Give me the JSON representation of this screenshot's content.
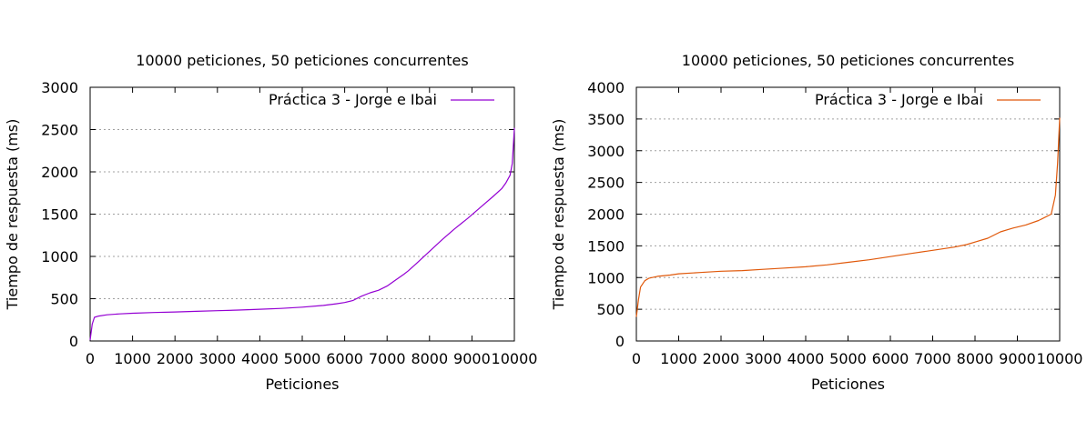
{
  "chart_data": [
    {
      "type": "line",
      "title": "10000 peticiones, 50 peticiones concurrentes",
      "xlabel": "Peticiones",
      "ylabel": "Tiempo de respuesta (ms)",
      "xlim": [
        0,
        10000
      ],
      "ylim": [
        0,
        3000
      ],
      "xticks": [
        0,
        1000,
        2000,
        3000,
        4000,
        5000,
        6000,
        7000,
        8000,
        9000,
        10000
      ],
      "yticks": [
        0,
        500,
        1000,
        1500,
        2000,
        2500,
        3000
      ],
      "grid": "horizontal dotted",
      "legend": "top-right",
      "series": [
        {
          "name": "Práctica 3 - Jorge e Ibai",
          "color": "#9400d3",
          "points": [
            [
              0,
              10
            ],
            [
              50,
              200
            ],
            [
              100,
              280
            ],
            [
              200,
              295
            ],
            [
              400,
              310
            ],
            [
              700,
              320
            ],
            [
              1000,
              328
            ],
            [
              1500,
              337
            ],
            [
              2000,
              343
            ],
            [
              2500,
              350
            ],
            [
              3000,
              358
            ],
            [
              3500,
              366
            ],
            [
              4000,
              375
            ],
            [
              4500,
              385
            ],
            [
              5000,
              400
            ],
            [
              5500,
              420
            ],
            [
              5800,
              440
            ],
            [
              6000,
              455
            ],
            [
              6200,
              480
            ],
            [
              6400,
              530
            ],
            [
              6600,
              570
            ],
            [
              6800,
              600
            ],
            [
              7000,
              650
            ],
            [
              7200,
              720
            ],
            [
              7400,
              790
            ],
            [
              7500,
              830
            ],
            [
              7700,
              920
            ],
            [
              8000,
              1060
            ],
            [
              8300,
              1200
            ],
            [
              8600,
              1330
            ],
            [
              8900,
              1450
            ],
            [
              9200,
              1580
            ],
            [
              9500,
              1710
            ],
            [
              9700,
              1800
            ],
            [
              9800,
              1870
            ],
            [
              9900,
              1960
            ],
            [
              9950,
              2100
            ],
            [
              9980,
              2350
            ],
            [
              10000,
              2520
            ]
          ]
        }
      ]
    },
    {
      "type": "line",
      "title": "10000 peticiones, 50 peticiones concurrentes",
      "xlabel": "Peticiones",
      "ylabel": "Tiempo de respuesta (ms)",
      "xlim": [
        0,
        10000
      ],
      "ylim": [
        0,
        4000
      ],
      "xticks": [
        0,
        1000,
        2000,
        3000,
        4000,
        5000,
        6000,
        7000,
        8000,
        9000,
        10000
      ],
      "yticks": [
        0,
        500,
        1000,
        1500,
        2000,
        2500,
        3000,
        3500,
        4000
      ],
      "grid": "horizontal dotted",
      "legend": "top-right",
      "series": [
        {
          "name": "Práctica 3 - Jorge e Ibai",
          "color": "#e0580a",
          "points": [
            [
              0,
              380
            ],
            [
              50,
              650
            ],
            [
              100,
              850
            ],
            [
              200,
              950
            ],
            [
              300,
              990
            ],
            [
              500,
              1020
            ],
            [
              800,
              1040
            ],
            [
              1000,
              1060
            ],
            [
              1500,
              1080
            ],
            [
              2000,
              1100
            ],
            [
              2500,
              1110
            ],
            [
              3000,
              1130
            ],
            [
              3500,
              1150
            ],
            [
              4000,
              1170
            ],
            [
              4500,
              1200
            ],
            [
              5000,
              1240
            ],
            [
              5500,
              1280
            ],
            [
              6000,
              1330
            ],
            [
              6500,
              1380
            ],
            [
              7000,
              1430
            ],
            [
              7500,
              1480
            ],
            [
              7800,
              1520
            ],
            [
              8000,
              1560
            ],
            [
              8300,
              1620
            ],
            [
              8600,
              1720
            ],
            [
              8900,
              1780
            ],
            [
              9200,
              1830
            ],
            [
              9500,
              1900
            ],
            [
              9800,
              2000
            ],
            [
              9900,
              2300
            ],
            [
              9950,
              2800
            ],
            [
              10000,
              3520
            ]
          ]
        }
      ]
    }
  ]
}
